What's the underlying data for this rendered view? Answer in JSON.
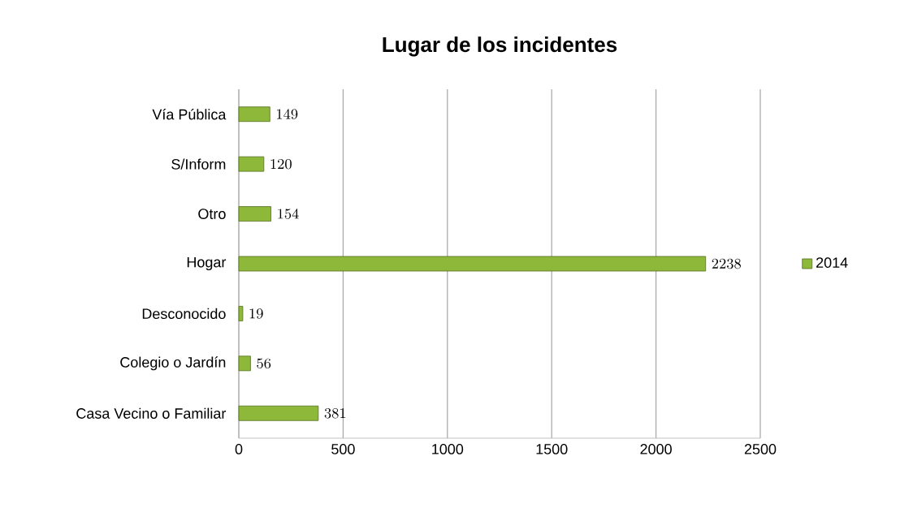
{
  "chart_data": {
    "type": "bar",
    "orientation": "horizontal",
    "title": "Lugar de los incidentes",
    "categories": [
      "Vía Pública",
      "S/Inform",
      "Otro",
      "Hogar",
      "Desconocido",
      "Colegio o Jardín",
      "Casa Vecino o Familiar"
    ],
    "series": [
      {
        "name": "2014",
        "color": "#8db83a",
        "values": [
          149,
          120,
          154,
          2238,
          19,
          56,
          381
        ]
      }
    ],
    "xlim": [
      0,
      2500
    ],
    "xticks": [
      0,
      500,
      1000,
      1500,
      2000,
      2500
    ],
    "grid": "x",
    "legend": "right",
    "data_labels": true
  }
}
